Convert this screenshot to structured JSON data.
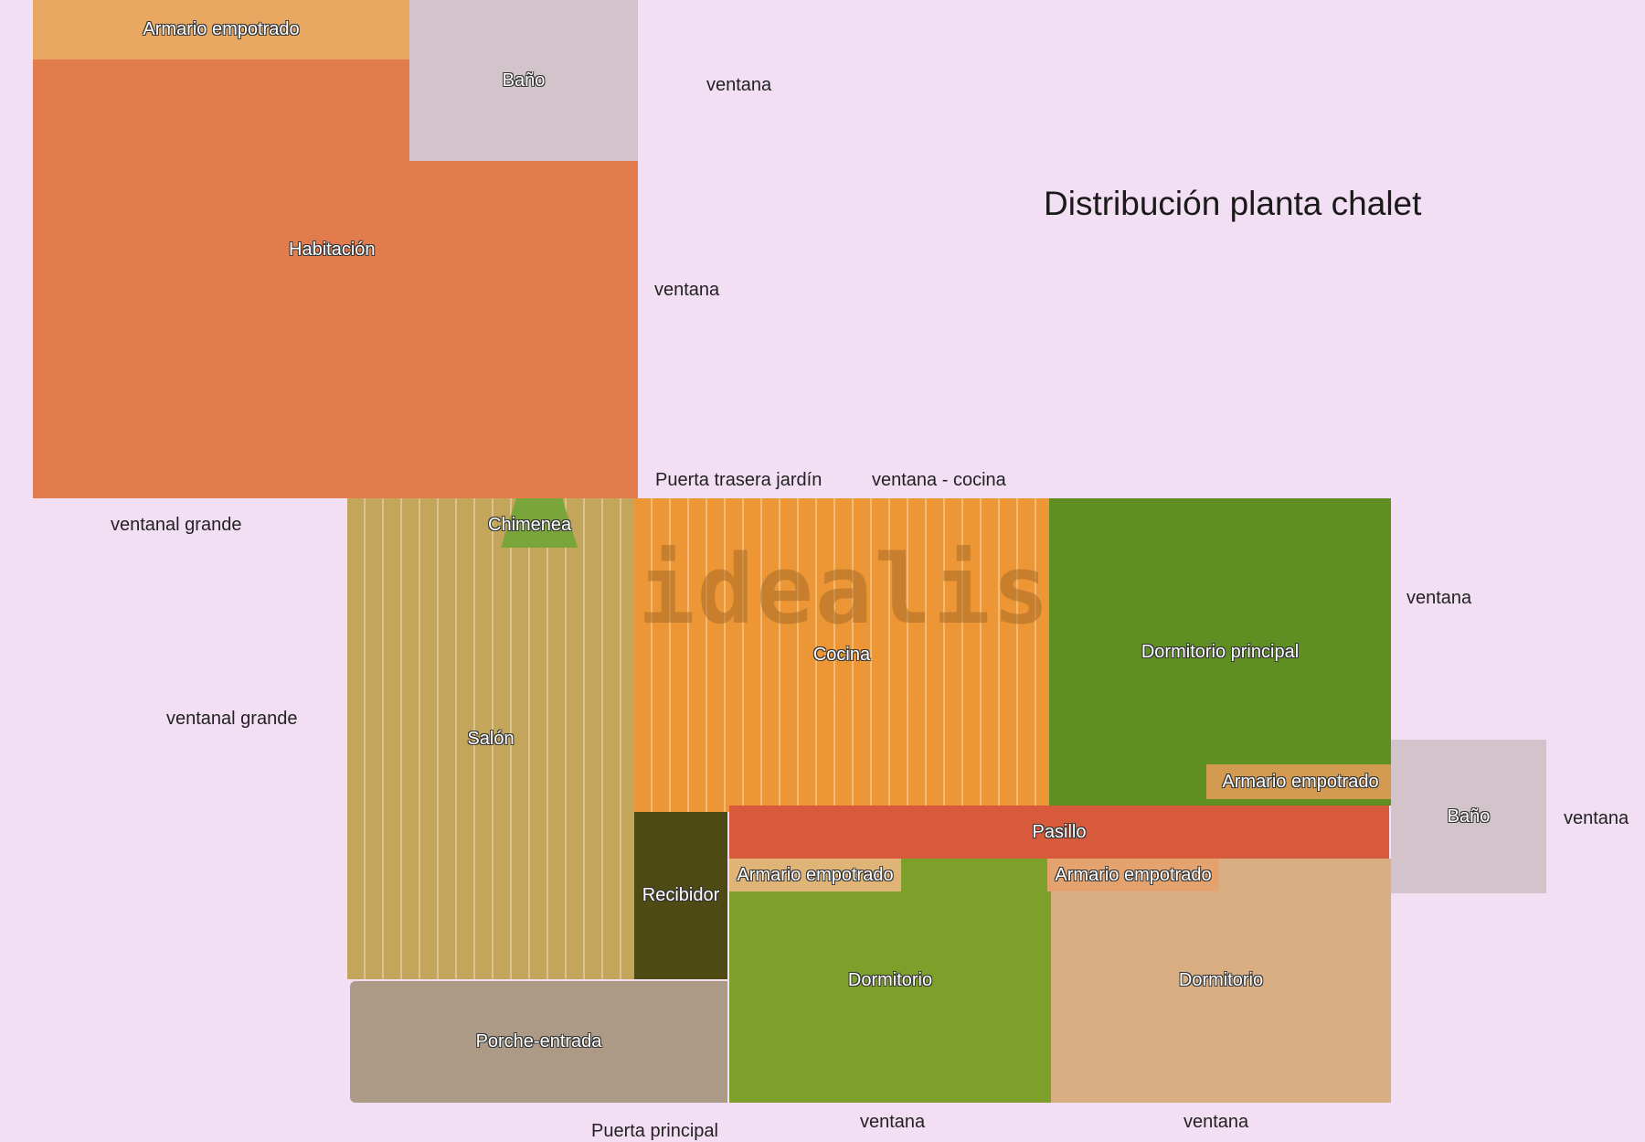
{
  "title": "Distribución planta chalet",
  "watermark": "idealista",
  "colors": {
    "background": "#f3dff3",
    "habitacion": "#e27c4d",
    "armario_top": "#e9a862",
    "bano": "#d3c4cc",
    "salon": "#c3a55c",
    "cocina": "#ec9636",
    "dormitorio_principal": "#5f8f22",
    "recibidor": "#4e4a13",
    "pasillo": "#d85a3c",
    "dormitorio_verde": "#7da02a",
    "dormitorio_beige": "#d8ae82",
    "porche": "#ac9a86",
    "chimenea": "#7aa53b"
  },
  "rooms": {
    "armario_top": "Armario empotrado",
    "bano_top": "Baño",
    "habitacion": "Habitación",
    "chimenea": "Chimenea",
    "salon": "Salón",
    "cocina": "Cocina",
    "dormitorio_principal": "Dormitorio principal",
    "armario_principal": "Armario empotrado",
    "bano_right": "Baño",
    "pasillo": "Pasillo",
    "recibidor": "Recibidor",
    "armario_dorm1": "Armario empotrado",
    "armario_dorm2": "Armario empotrado",
    "dormitorio1": "Dormitorio",
    "dormitorio2": "Dormitorio",
    "porche": "Porche-entrada"
  },
  "notes": {
    "ventana_top": "ventana",
    "ventana_habitacion": "ventana",
    "puerta_trasera": "Puerta trasera jardín",
    "ventana_cocina": "ventana - cocina",
    "ventanal_1": "ventanal grande",
    "ventanal_2": "ventanal grande",
    "ventana_principal": "ventana",
    "ventana_bano": "ventana",
    "puerta_principal": "Puerta principal",
    "ventana_dorm1": "ventana",
    "ventana_dorm2": "ventana"
  }
}
